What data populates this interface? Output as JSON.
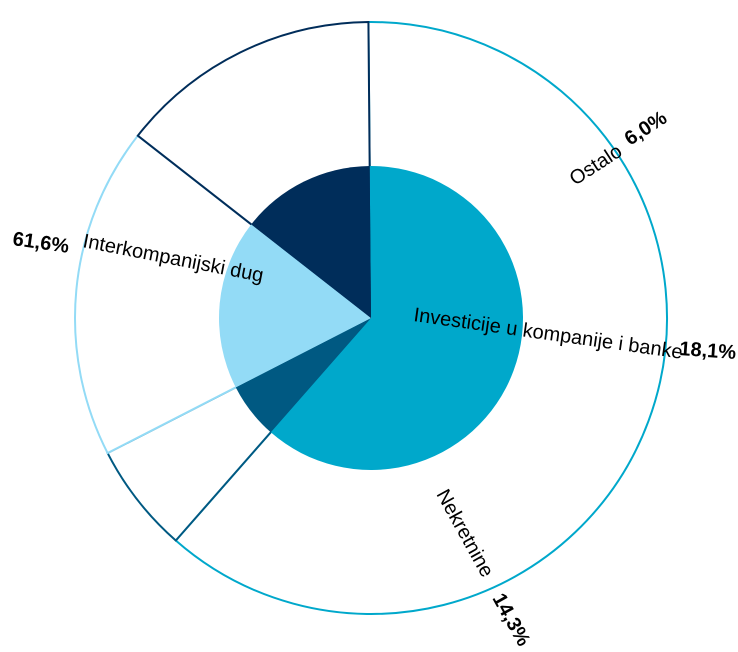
{
  "chart_data": {
    "type": "pie",
    "title": "",
    "categories": [
      "Interkompanijski dug",
      "Ostalo",
      "Investicije u kompanije i banke",
      "Nekretnine"
    ],
    "values": [
      61.6,
      6.0,
      18.1,
      14.3
    ],
    "value_labels": [
      "61,6%",
      "6,0%",
      "18,1%",
      "14,3%"
    ],
    "colors": [
      "#00a8cb",
      "#005982",
      "#93dbf6",
      "#002d5a"
    ],
    "outer_ring": "exploded rim segments, white fill, stroked in slice colour"
  }
}
